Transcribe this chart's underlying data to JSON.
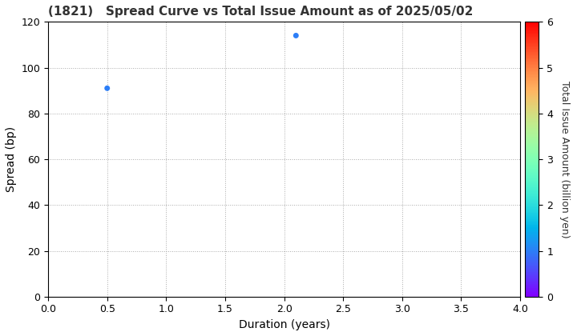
{
  "title": "(1821)   Spread Curve vs Total Issue Amount as of 2025/05/02",
  "xlabel": "Duration (years)",
  "ylabel": "Spread (bp)",
  "colorbar_label": "Total Issue Amount (billion yen)",
  "xlim": [
    0.0,
    4.0
  ],
  "ylim": [
    0,
    120
  ],
  "xticks": [
    0.0,
    0.5,
    1.0,
    1.5,
    2.0,
    2.5,
    3.0,
    3.5,
    4.0
  ],
  "yticks": [
    0,
    20,
    40,
    60,
    80,
    100,
    120
  ],
  "colorbar_min": 0,
  "colorbar_max": 6,
  "colorbar_ticks": [
    0,
    1,
    2,
    3,
    4,
    5,
    6
  ],
  "points": [
    {
      "duration": 0.5,
      "spread": 91,
      "amount": 1.0
    },
    {
      "duration": 2.1,
      "spread": 114,
      "amount": 1.0
    }
  ],
  "marker_size": 25,
  "background_color": "#ffffff",
  "grid_color": "#aaaaaa",
  "grid_linestyle": ":",
  "cmap": "rainbow"
}
